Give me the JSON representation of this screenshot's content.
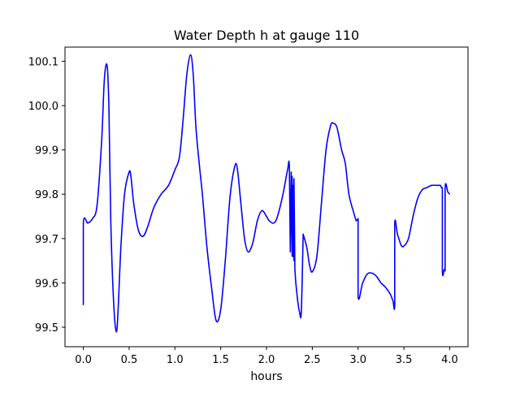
{
  "chart_data": {
    "type": "line",
    "title": "Water Depth h at gauge 110",
    "xlabel": "hours",
    "ylabel": "",
    "xlim": [
      -0.2,
      4.2
    ],
    "ylim": [
      99.456,
      100.132
    ],
    "xticks": [
      0.0,
      0.5,
      1.0,
      1.5,
      2.0,
      2.5,
      3.0,
      3.5,
      4.0
    ],
    "xtick_labels": [
      "0.0",
      "0.5",
      "1.0",
      "1.5",
      "2.0",
      "2.5",
      "3.0",
      "3.5",
      "4.0"
    ],
    "yticks": [
      99.5,
      99.6,
      99.7,
      99.8,
      99.9,
      100.0,
      100.1
    ],
    "ytick_labels": [
      "99.5",
      "99.6",
      "99.7",
      "99.8",
      "99.9",
      "100.0",
      "100.1"
    ],
    "grid": false,
    "line_color": "#0000ff",
    "series": [
      {
        "name": "",
        "x": [
          0.0,
          0.0,
          0.05,
          0.1,
          0.15,
          0.2,
          0.23,
          0.26,
          0.28,
          0.3,
          0.33,
          0.36,
          0.38,
          0.41,
          0.45,
          0.5,
          0.52,
          0.55,
          0.6,
          0.65,
          0.7,
          0.77,
          0.85,
          0.93,
          1.0,
          1.05,
          1.09,
          1.13,
          1.17,
          1.2,
          1.23,
          1.27,
          1.3,
          1.35,
          1.4,
          1.45,
          1.5,
          1.55,
          1.6,
          1.65,
          1.68,
          1.72,
          1.76,
          1.8,
          1.85,
          1.9,
          1.95,
          2.0,
          2.03,
          2.08,
          2.12,
          2.18,
          2.23,
          2.25,
          2.26,
          2.27,
          2.28,
          2.28,
          2.29,
          2.29,
          2.3,
          2.3,
          2.31,
          2.32,
          2.33,
          2.34,
          2.36,
          2.38,
          2.4,
          2.4,
          2.44,
          2.47,
          2.5,
          2.55,
          2.6,
          2.65,
          2.7,
          2.73,
          2.77,
          2.82,
          2.86,
          2.9,
          2.95,
          2.98,
          2.99,
          3.0,
          3.0,
          3.05,
          3.1,
          3.15,
          3.2,
          3.25,
          3.3,
          3.35,
          3.38,
          3.4,
          3.4,
          3.43,
          3.47,
          3.5,
          3.55,
          3.6,
          3.65,
          3.7,
          3.75,
          3.8,
          3.85,
          3.88,
          3.9,
          3.91,
          3.92,
          3.92,
          3.94,
          3.95,
          3.95,
          3.98,
          4.0
        ],
        "y": [
          99.55,
          99.733,
          99.735,
          99.745,
          99.775,
          99.92,
          100.06,
          100.09,
          99.99,
          99.74,
          99.56,
          99.49,
          99.54,
          99.68,
          99.8,
          99.85,
          99.84,
          99.78,
          99.72,
          99.705,
          99.725,
          99.77,
          99.8,
          99.82,
          99.855,
          99.885,
          99.97,
          100.07,
          100.115,
          100.07,
          99.95,
          99.86,
          99.8,
          99.68,
          99.59,
          99.515,
          99.54,
          99.65,
          99.79,
          99.86,
          99.86,
          99.78,
          99.7,
          99.67,
          99.69,
          99.74,
          99.763,
          99.75,
          99.74,
          99.735,
          99.75,
          99.8,
          99.855,
          99.86,
          99.67,
          99.85,
          99.66,
          99.84,
          99.66,
          99.82,
          99.65,
          99.835,
          99.63,
          99.6,
          99.58,
          99.56,
          99.535,
          99.535,
          99.708,
          99.71,
          99.68,
          99.64,
          99.625,
          99.66,
          99.78,
          99.9,
          99.955,
          99.96,
          99.95,
          99.9,
          99.87,
          99.8,
          99.76,
          99.74,
          99.742,
          99.745,
          99.57,
          99.6,
          99.62,
          99.622,
          99.615,
          99.6,
          99.59,
          99.575,
          99.56,
          99.552,
          99.733,
          99.71,
          99.685,
          99.683,
          99.7,
          99.75,
          99.79,
          99.81,
          99.815,
          99.82,
          99.82,
          99.82,
          99.82,
          99.815,
          99.815,
          99.63,
          99.63,
          99.627,
          99.812,
          99.805,
          99.8
        ]
      }
    ]
  }
}
